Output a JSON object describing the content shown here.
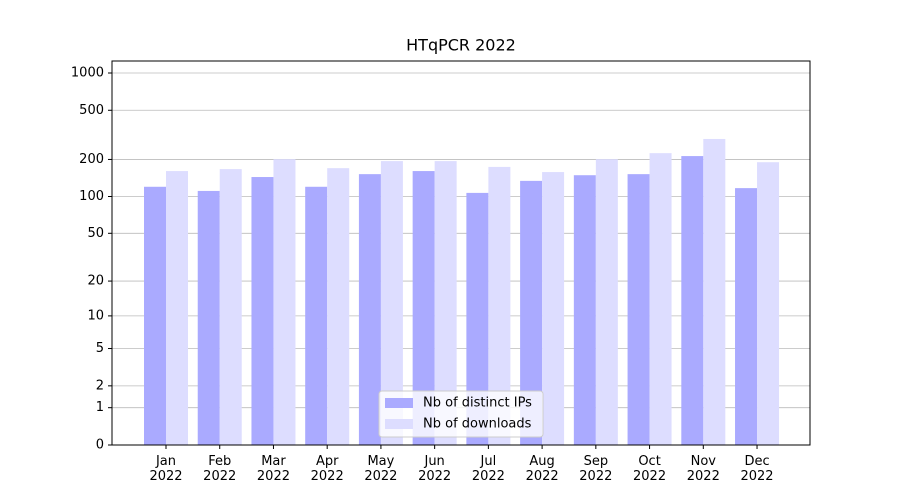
{
  "chart_data": {
    "type": "bar",
    "title": "HTqPCR 2022",
    "categories": [
      "Jan\n2022",
      "Feb\n2022",
      "Mar\n2022",
      "Apr\n2022",
      "May\n2022",
      "Jun\n2022",
      "Jul\n2022",
      "Aug\n2022",
      "Sep\n2022",
      "Oct\n2022",
      "Nov\n2022",
      "Dec\n2022"
    ],
    "series": [
      {
        "name": "Nb of distinct IPs",
        "color": "#aaaaff",
        "values": [
          120,
          111,
          144,
          120,
          152,
          161,
          107,
          134,
          149,
          152,
          213,
          117
        ]
      },
      {
        "name": "Nb of downloads",
        "color": "#ddddff",
        "values": [
          161,
          167,
          201,
          170,
          194,
          194,
          174,
          158,
          201,
          225,
          293,
          190
        ]
      }
    ],
    "yscale": "log1p",
    "ylim": [
      0,
      1250
    ],
    "yticks": [
      0,
      1,
      2,
      5,
      10,
      20,
      50,
      100,
      200,
      500,
      1000
    ],
    "grid": true,
    "legend": "lower center"
  }
}
